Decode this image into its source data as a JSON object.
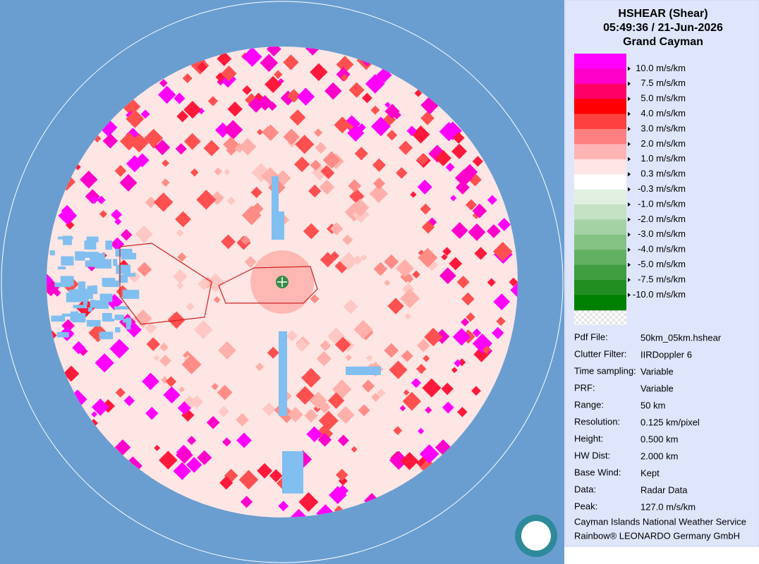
{
  "header": {
    "title": "HSHEAR (Shear)",
    "time": "05:49:36 / 21-Jun-2026",
    "site": "Grand Cayman"
  },
  "legend": {
    "colors": [
      "#ff00ff",
      "#ff00c8",
      "#ff0066",
      "#ff0000",
      "#ff4040",
      "#ff8080",
      "#ffb4b4",
      "#ffe6e6",
      "#ffffff",
      "#e2f0e2",
      "#c4e2c4",
      "#a4d2a4",
      "#84c284",
      "#62b062",
      "#409e40",
      "#228e22",
      "#008000"
    ],
    "labels": [
      "10.0 m/s/km",
      "7.5 m/s/km",
      "5.0 m/s/km",
      "4.0 m/s/km",
      "3.0 m/s/km",
      "2.0 m/s/km",
      "1.0 m/s/km",
      "0.3 m/s/km",
      "-0.3 m/s/km",
      "-1.0 m/s/km",
      "-2.0 m/s/km",
      "-3.0 m/s/km",
      "-4.0 m/s/km",
      "-5.0 m/s/km",
      "-7.5 m/s/km",
      "-10.0 m/s/km"
    ]
  },
  "info": [
    {
      "label": "Pdf File:",
      "value": "50km_05km.hshear"
    },
    {
      "label": "Clutter Filter:",
      "value": "IIRDoppler 6"
    },
    {
      "label": "Time sampling:",
      "value": "Variable"
    },
    {
      "label": "PRF:",
      "value": "Variable"
    },
    {
      "label": "Range:",
      "value": "50 km"
    },
    {
      "label": "Resolution:",
      "value": "0.125 km/pixel"
    },
    {
      "label": "Height:",
      "value": "0.500 km"
    },
    {
      "label": "HW Dist:",
      "value": "2.000 km"
    },
    {
      "label": "Base Wind:",
      "value": "Kept"
    },
    {
      "label": "Data:",
      "value": "Radar Data"
    },
    {
      "label": "Peak:",
      "value": "127.0 m/s/km"
    }
  ],
  "footer": [
    "Cayman Islands National Weather Service",
    "Rainbow® LEONARDO Germany GmbH"
  ]
}
